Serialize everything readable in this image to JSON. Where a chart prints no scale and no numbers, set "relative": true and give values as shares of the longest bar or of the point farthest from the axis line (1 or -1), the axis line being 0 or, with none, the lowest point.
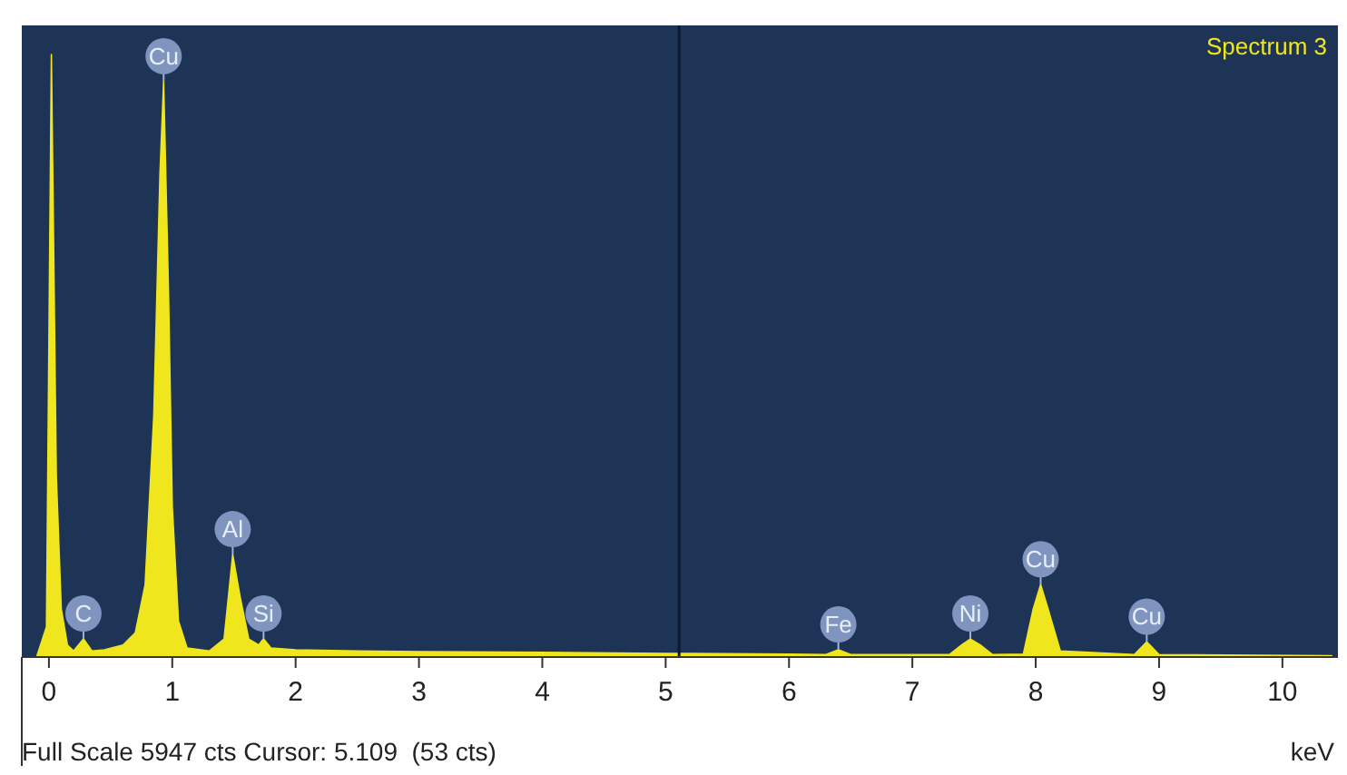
{
  "chart_data": {
    "type": "area",
    "relative": true,
    "xlabel": "keV",
    "xlim": [
      -0.22,
      10.45
    ],
    "xticks": [
      0,
      1,
      2,
      3,
      4,
      5,
      6,
      7,
      8,
      9,
      10
    ],
    "series": [
      {
        "color": "#f0e61e",
        "x": [
          -0.2,
          -0.1,
          -0.02,
          0.02,
          0.06,
          0.1,
          0.15,
          0.2,
          0.28,
          0.35,
          0.45,
          0.6,
          0.7,
          0.78,
          0.85,
          0.9,
          0.93,
          0.97,
          1.0,
          1.05,
          1.12,
          1.3,
          1.42,
          1.49,
          1.55,
          1.62,
          1.7,
          1.74,
          1.8,
          2.0,
          2.5,
          3,
          4,
          5,
          6,
          6.3,
          6.4,
          6.5,
          7.3,
          7.4,
          7.47,
          7.55,
          7.65,
          7.9,
          7.98,
          8.04,
          8.1,
          8.2,
          8.8,
          8.9,
          9.0,
          10.4
        ],
        "values": [
          0,
          0,
          0.05,
          1.0,
          0.3,
          0.08,
          0.02,
          0.01,
          0.03,
          0.01,
          0.012,
          0.02,
          0.04,
          0.12,
          0.4,
          0.8,
          0.955,
          0.6,
          0.25,
          0.06,
          0.015,
          0.01,
          0.03,
          0.17,
          0.1,
          0.03,
          0.02,
          0.03,
          0.015,
          0.012,
          0.01,
          0.009,
          0.008,
          0.006,
          0.005,
          0.004,
          0.012,
          0.004,
          0.004,
          0.02,
          0.03,
          0.02,
          0.004,
          0.005,
          0.08,
          0.12,
          0.08,
          0.01,
          0.004,
          0.025,
          0.004,
          0.002
        ]
      }
    ],
    "ref_lines": [
      {
        "axis": "x",
        "value": 5.109,
        "color": "#0c1a30"
      }
    ],
    "annotations": [
      {
        "text": "Cu",
        "x": 0.93,
        "y": 0.955
      },
      {
        "text": "C",
        "x": 0.28,
        "y": 0.03
      },
      {
        "text": "Al",
        "x": 1.49,
        "y": 0.17
      },
      {
        "text": "Si",
        "x": 1.74,
        "y": 0.03
      },
      {
        "text": "Fe",
        "x": 6.4,
        "y": 0.012
      },
      {
        "text": "Ni",
        "x": 7.47,
        "y": 0.03
      },
      {
        "text": "Cu",
        "x": 8.04,
        "y": 0.12
      },
      {
        "text": "Cu",
        "x": 8.9,
        "y": 0.025
      },
      "Spectrum 3",
      "Full Scale 5947 cts Cursor: 5.109  (53 cts)"
    ]
  }
}
